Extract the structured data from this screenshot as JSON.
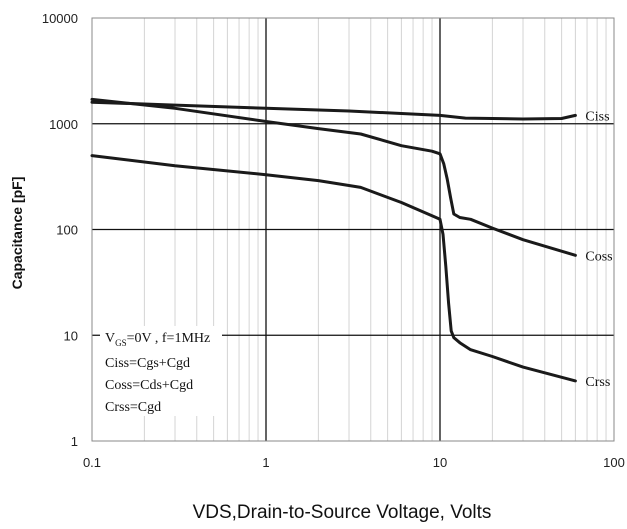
{
  "chart_data": {
    "type": "line",
    "xscale": "log",
    "yscale": "log",
    "xlim": [
      0.1,
      100
    ],
    "ylim": [
      1,
      10000
    ],
    "xlabel": "VDS,Drain-to-Source Voltage, Volts",
    "ylabel": "Capacitance [pF]",
    "x_ticks": [
      "0.1",
      "1",
      "10",
      "100"
    ],
    "y_ticks": [
      "1",
      "10",
      "100",
      "1000",
      "10000"
    ],
    "grid": true,
    "annotation_lines": [
      "V_GS=0V , f=1MHz",
      "Ciss=Cgs+Cgd",
      "Coss=Cds+Cgd",
      "Crss=Cgd"
    ],
    "series": [
      {
        "name": "Ciss",
        "x": [
          0.1,
          0.3,
          1,
          3,
          6,
          10,
          14,
          20,
          30,
          50,
          60
        ],
        "y": [
          1600,
          1500,
          1400,
          1320,
          1250,
          1200,
          1130,
          1120,
          1110,
          1120,
          1200
        ]
      },
      {
        "name": "Coss",
        "x": [
          0.1,
          0.3,
          1,
          2,
          3.5,
          6,
          9,
          10,
          10.5,
          11,
          11.5,
          12,
          13,
          15,
          20,
          30,
          60
        ],
        "y": [
          1700,
          1400,
          1050,
          900,
          800,
          620,
          550,
          520,
          420,
          300,
          200,
          140,
          130,
          125,
          103,
          80,
          57
        ]
      },
      {
        "name": "Crss",
        "x": [
          0.1,
          0.3,
          1,
          2,
          3.5,
          6,
          9,
          10,
          10.4,
          10.8,
          11.2,
          11.6,
          12,
          13,
          15,
          20,
          30,
          60
        ],
        "y": [
          500,
          400,
          330,
          290,
          250,
          180,
          135,
          125,
          90,
          45,
          20,
          11,
          9.5,
          8.5,
          7.3,
          6.3,
          5.0,
          3.7
        ]
      }
    ]
  }
}
